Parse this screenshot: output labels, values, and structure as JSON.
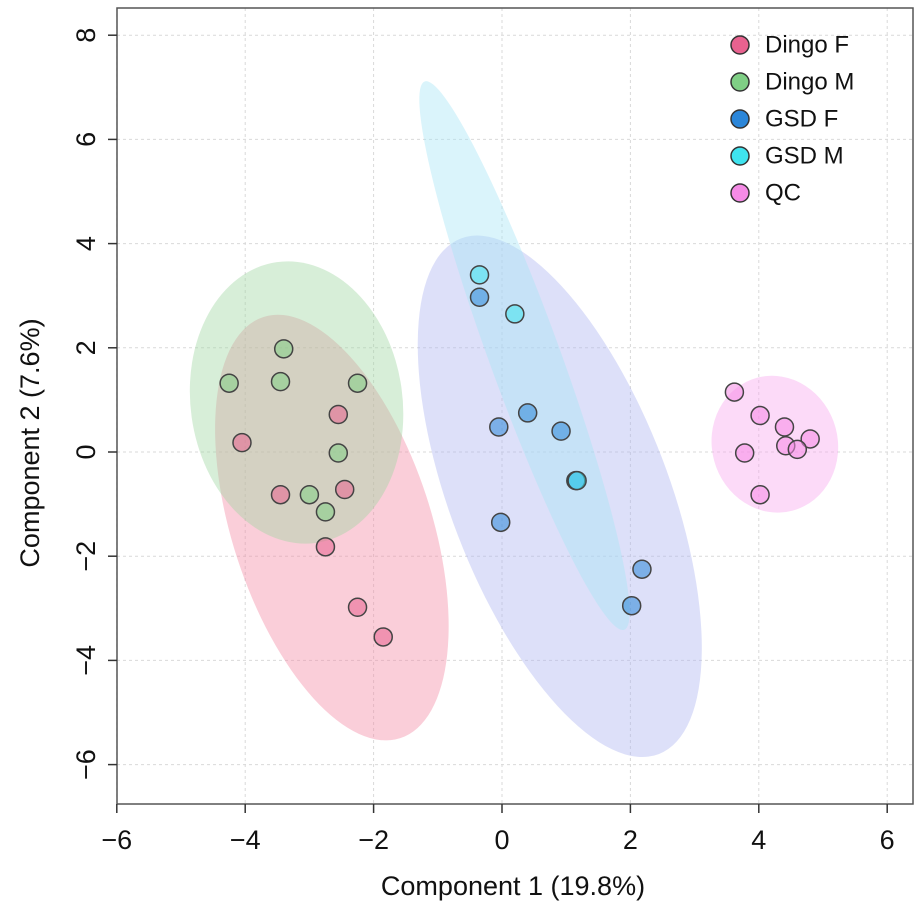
{
  "chart_data": {
    "type": "scatter",
    "title": "",
    "xlabel": "Component 1 (19.8%)",
    "ylabel": "Component 2 (7.6%)",
    "xlim": [
      -6,
      6.5
    ],
    "ylim": [
      -6.8,
      8.5
    ],
    "xticks": [
      -6,
      -4,
      -2,
      0,
      2,
      4,
      6
    ],
    "yticks": [
      -6,
      -4,
      -2,
      0,
      2,
      4,
      6,
      8
    ],
    "grid": true,
    "legend_position": "top-right",
    "series": [
      {
        "name": "Dingo F",
        "marker_color": "#e8628f",
        "ellipse_color": "#f28aa5",
        "points": [
          [
            -4.05,
            0.18
          ],
          [
            -2.55,
            0.72
          ],
          [
            -3.45,
            -0.82
          ],
          [
            -2.45,
            -0.72
          ],
          [
            -2.75,
            -1.82
          ],
          [
            -2.25,
            -2.98
          ],
          [
            -1.85,
            -3.55
          ]
        ],
        "ellipse": {
          "cx": -2.65,
          "cy": -1.45,
          "rx": 1.55,
          "ry": 4.25,
          "angle_deg": 18
        }
      },
      {
        "name": "Dingo M",
        "marker_color": "#7fcf85",
        "ellipse_color": "#9fd6a2",
        "points": [
          [
            -4.25,
            1.32
          ],
          [
            -3.4,
            1.98
          ],
          [
            -3.45,
            1.35
          ],
          [
            -2.25,
            1.32
          ],
          [
            -2.55,
            -0.02
          ],
          [
            -3.0,
            -0.82
          ],
          [
            -2.75,
            -1.15
          ]
        ],
        "ellipse": {
          "cx": -3.2,
          "cy": 0.95,
          "rx": 1.65,
          "ry": 2.72,
          "angle_deg": 8
        }
      },
      {
        "name": "GSD F",
        "marker_color": "#2b86d9",
        "ellipse_color": "#aeb4f0",
        "points": [
          [
            -0.35,
            2.97
          ],
          [
            0.4,
            0.75
          ],
          [
            -0.05,
            0.48
          ],
          [
            0.92,
            0.4
          ],
          [
            1.15,
            -0.55
          ],
          [
            -0.02,
            -1.35
          ],
          [
            2.18,
            -2.25
          ],
          [
            2.02,
            -2.95
          ]
        ],
        "ellipse": {
          "cx": 0.9,
          "cy": -0.85,
          "rx": 1.7,
          "ry": 5.3,
          "angle_deg": 21
        }
      },
      {
        "name": "GSD M",
        "marker_color": "#3fe3ee",
        "ellipse_color": "#a6e4f5",
        "points": [
          [
            -0.35,
            3.4
          ],
          [
            0.2,
            2.65
          ],
          [
            1.17,
            -0.55
          ]
        ],
        "ellipse": {
          "cx": 0.35,
          "cy": 1.85,
          "rx": 0.55,
          "ry": 5.6,
          "angle_deg": 20
        }
      },
      {
        "name": "QC",
        "marker_color": "#f58be6",
        "ellipse_color": "#f7a8ef",
        "points": [
          [
            3.62,
            1.15
          ],
          [
            4.02,
            0.7
          ],
          [
            4.4,
            0.48
          ],
          [
            4.8,
            0.25
          ],
          [
            4.42,
            0.12
          ],
          [
            4.6,
            0.05
          ],
          [
            3.78,
            -0.02
          ],
          [
            4.02,
            -0.82
          ]
        ],
        "ellipse": {
          "cx": 4.25,
          "cy": 0.15,
          "rx": 0.98,
          "ry": 1.32,
          "angle_deg": 15
        }
      }
    ]
  }
}
